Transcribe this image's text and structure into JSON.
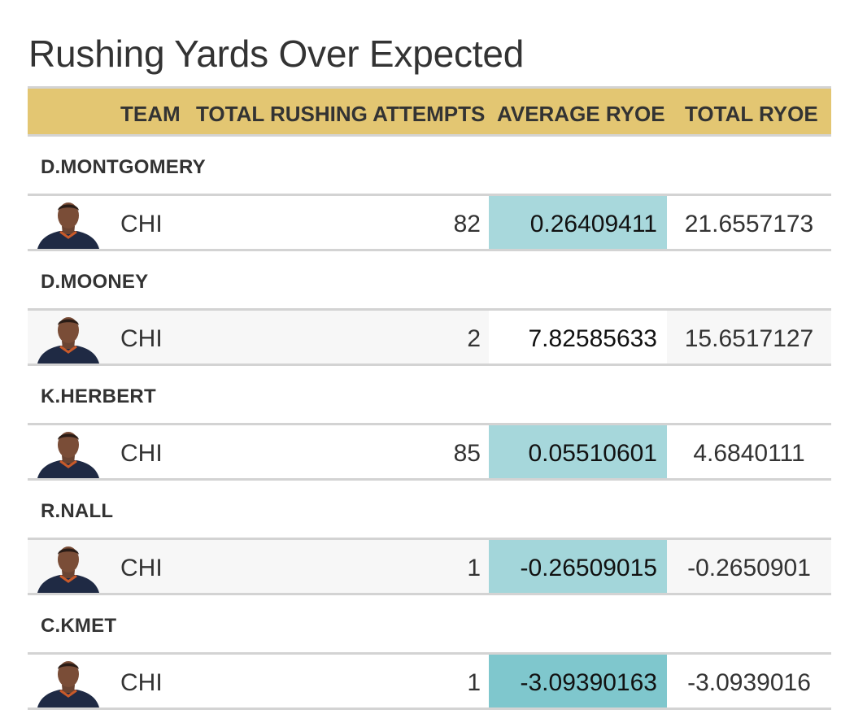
{
  "title": "Rushing Yards Over Expected",
  "chart_data": {
    "type": "table",
    "columns": [
      "TEAM",
      "TOTAL RUSHING ATTEMPTS",
      "AVERAGE RYOE",
      "TOTAL RYOE"
    ],
    "rows": [
      {
        "player": "D.MONTGOMERY",
        "headshot": "player-headshot-icon",
        "team": "CHI",
        "attempts": "82",
        "avg_ryoe": "0.26409411",
        "total_ryoe": "21.6557173",
        "avg_color": "#a8d8dc"
      },
      {
        "player": "D.MOONEY",
        "headshot": "player-headshot-icon",
        "team": "CHI",
        "attempts": "2",
        "avg_ryoe": "7.82585633",
        "total_ryoe": "15.6517127",
        "avg_color": "#ffffff"
      },
      {
        "player": "K.HERBERT",
        "headshot": "player-headshot-icon",
        "team": "CHI",
        "attempts": "85",
        "avg_ryoe": "0.05510601",
        "total_ryoe": "4.6840111",
        "avg_color": "#a6d7db"
      },
      {
        "player": "R.NALL",
        "headshot": "player-headshot-icon",
        "team": "CHI",
        "attempts": "1",
        "avg_ryoe": "-0.26509015",
        "total_ryoe": "-0.2650901",
        "avg_color": "#a3d6da"
      },
      {
        "player": "C.KMET",
        "headshot": "player-headshot-icon",
        "team": "CHI",
        "attempts": "1",
        "avg_ryoe": "-3.09390163",
        "total_ryoe": "-3.0939016",
        "avg_color": "#7fc7cd"
      }
    ]
  },
  "colors": {
    "header": "#e3c672",
    "border": "#d3d3d3",
    "stripe": "#f7f7f7",
    "jersey": "#1f2a44"
  }
}
